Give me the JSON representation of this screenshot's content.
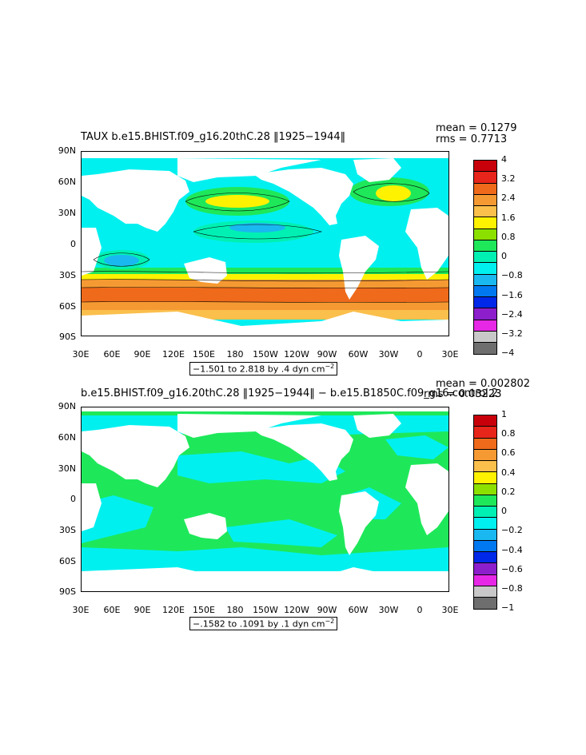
{
  "panels": [
    {
      "title": "TAUX  b.e15.BHIST.f09_g16.20thC.28  ‖1925−1944‖",
      "mean": "mean = 0.1279",
      "rms": "rms = 0.7713",
      "caption_main": "−1.501 to 2.818 by .4 dyn cm",
      "caption_sup": "−2",
      "colorbar_labels": [
        "4",
        "3.2",
        "2.4",
        "1.6",
        "0.8",
        "0",
        "−0.8",
        "−1.6",
        "−2.4",
        "−3.2",
        "−4"
      ],
      "colorbar_colors": [
        "#c8000a",
        "#e8251a",
        "#ef6a1a",
        "#f59a32",
        "#fbbf4c",
        "#fff200",
        "#8ce000",
        "#1ee85a",
        "#00f0b4",
        "#00f0f0",
        "#1ab8f0",
        "#0078f0",
        "#0028e8",
        "#8c1ecc",
        "#e628e6",
        "#c8c8c8",
        "#6e6e6e"
      ]
    },
    {
      "title": "b.e15.BHIST.f09_g16.20thC.28  ‖1925−1944‖  −  b.e15.B1850C.f09_g16.control.2",
      "mean": "mean = 0.002802",
      "rms": "rms = 0.03223",
      "caption_main": "−.1582 to .1091 by .1 dyn cm",
      "caption_sup": "−2",
      "colorbar_labels": [
        "1",
        "0.8",
        "0.6",
        "0.4",
        "0.2",
        "0",
        "−0.2",
        "−0.4",
        "−0.6",
        "−0.8",
        "−1"
      ],
      "colorbar_colors": [
        "#c8000a",
        "#e8251a",
        "#ef6a1a",
        "#f59a32",
        "#fbbf4c",
        "#fff200",
        "#8ce000",
        "#1ee85a",
        "#00f0b4",
        "#00f0f0",
        "#1ab8f0",
        "#0078f0",
        "#0028e8",
        "#8c1ecc",
        "#e628e6",
        "#c8c8c8",
        "#6e6e6e"
      ]
    }
  ],
  "lat_labels": [
    "90N",
    "60N",
    "30N",
    "0",
    "30S",
    "60S",
    "90S"
  ],
  "lon_labels": [
    "30E",
    "60E",
    "90E",
    "120E",
    "150E",
    "180",
    "150W",
    "120W",
    "90W",
    "60W",
    "30W",
    "0",
    "30E"
  ],
  "colors": {
    "land": "#ffffff",
    "green": "#1ee85a",
    "lightgreen": "#8ce000",
    "cyan": "#00f0f0",
    "teal": "#00f0b4",
    "skyblue": "#1ab8f0",
    "yellow": "#fff200",
    "orange_light": "#fbbf4c",
    "orange": "#f59a32",
    "dark_orange": "#ef6a1a"
  }
}
